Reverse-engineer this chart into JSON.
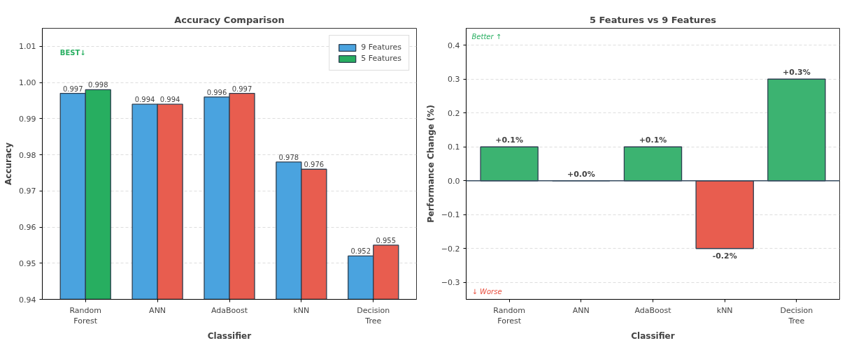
{
  "chart_data": [
    {
      "type": "bar",
      "title": "Accuracy Comparison",
      "xlabel": "Classifier",
      "ylabel": "Accuracy",
      "categories": [
        "Random\nForest",
        "ANN",
        "AdaBoost",
        "kNN",
        "Decision\nTree"
      ],
      "series": [
        {
          "name": "9 Features",
          "color": "#4aa3df",
          "values": [
            0.997,
            0.994,
            0.996,
            0.978,
            0.952
          ]
        },
        {
          "name": "5 Features",
          "color": "#27ae60",
          "colors": [
            "#27ae60",
            "#e85d4f",
            "#e85d4f",
            "#e85d4f",
            "#e85d4f"
          ],
          "values": [
            0.998,
            0.994,
            0.997,
            0.976,
            0.955
          ]
        }
      ],
      "ylim": [
        0.94,
        1.015
      ],
      "yticks": [
        0.94,
        0.95,
        0.96,
        0.97,
        0.98,
        0.99,
        {
          "value": 1.0,
          "label": "1.00"
        },
        1.01
      ],
      "grid": "y",
      "legend": "top right",
      "data_labels": true,
      "annotations": [
        "BEST↓"
      ]
    },
    {
      "type": "bar",
      "title": "5 Features vs 9 Features",
      "xlabel": "Classifier",
      "ylabel": "Performance Change (%)",
      "categories": [
        "Random\nForest",
        "ANN",
        "AdaBoost",
        "kNN",
        "Decision\nTree"
      ],
      "values": [
        0.1,
        0.0,
        0.1,
        -0.2,
        0.3
      ],
      "colors": [
        "#3cb371",
        "#2c3e50",
        "#3cb371",
        "#e85d4f",
        "#3cb371"
      ],
      "value_labels": [
        "+0.1%",
        "+0.0%",
        "+0.1%",
        "-0.2%",
        "+0.3%"
      ],
      "ylim": [
        -0.35,
        0.45
      ],
      "yticks": [
        {
          "value": -0.3,
          "label": "−0.3"
        },
        {
          "value": -0.2,
          "label": "−0.2"
        },
        {
          "value": -0.1,
          "label": "−0.1"
        },
        {
          "value": 0,
          "label": "0.0"
        },
        0.1,
        0.2,
        0.3,
        0.4
      ],
      "ref_lines": [
        {
          "axis": "y",
          "value": 0,
          "color": "#34495e"
        }
      ],
      "grid": "y",
      "annotations": [
        "Better ↑",
        "↓ Worse"
      ]
    }
  ]
}
